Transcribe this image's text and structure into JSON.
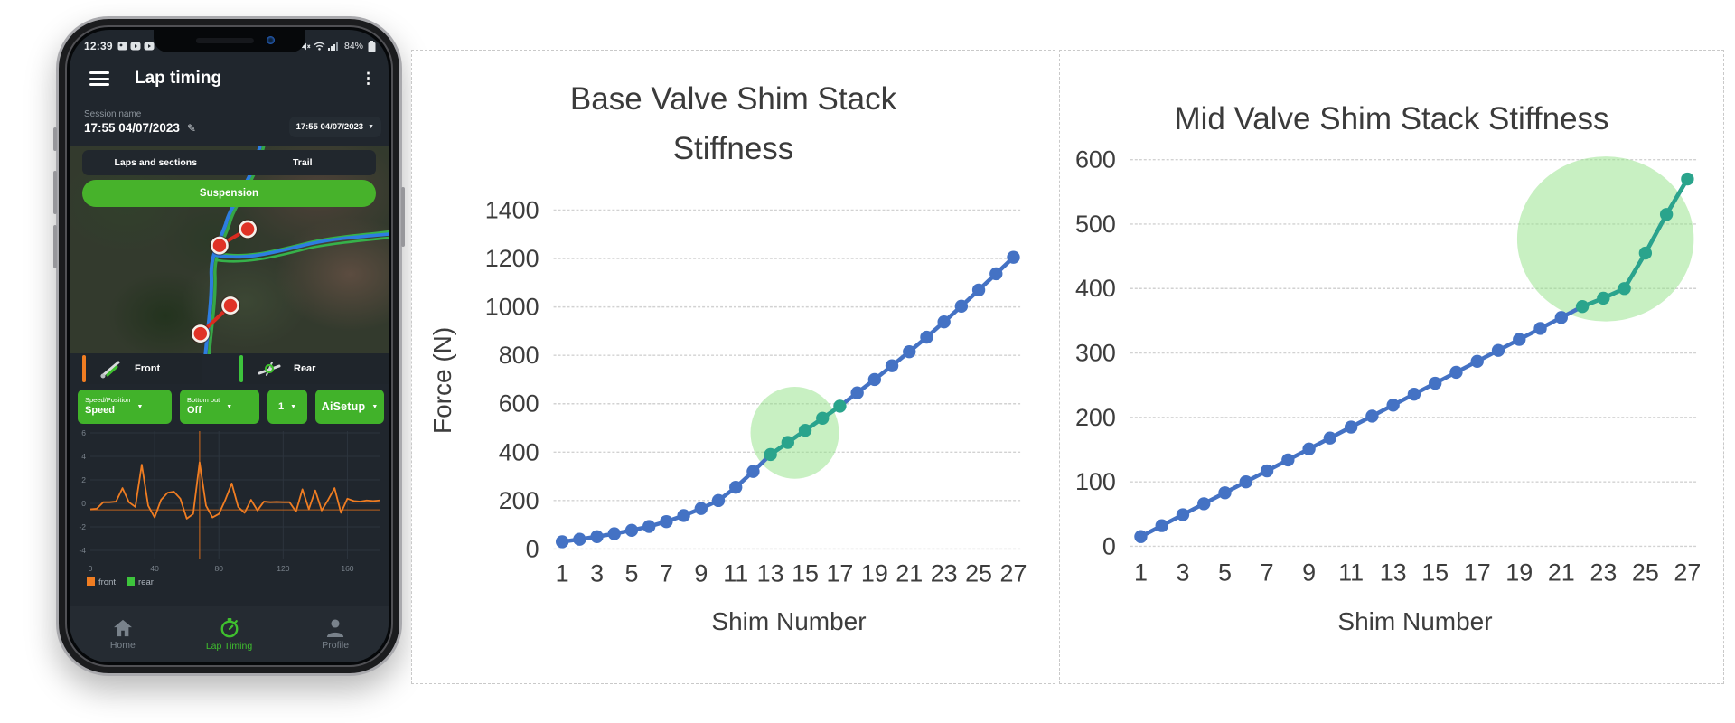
{
  "glyphs": {
    "caret_down": "▼",
    "pencil": "✎",
    "kebab": "⋮",
    "dot": "•"
  },
  "phone": {
    "status_bar": {
      "time": "12:39",
      "battery_percent": "84%",
      "left_icons": [
        "gallery-icon",
        "play-icon",
        "play-icon",
        "dot"
      ],
      "right_icons": [
        "alarm-icon",
        "mute-icon",
        "wifi-icon",
        "signal-icon",
        "battery-icon"
      ]
    },
    "app_bar": {
      "title": "Lap timing"
    },
    "session": {
      "label": "Session name",
      "name": "17:55 04/07/2023",
      "selected_session": "17:55 04/07/2023"
    },
    "top_tabs": [
      {
        "label": "Laps and sections"
      },
      {
        "label": "Trail"
      }
    ],
    "suspension_button_label": "Suspension",
    "sensor_tabs": [
      {
        "label": "Front",
        "accent": "#f07d22",
        "icon": "front-fork-icon"
      },
      {
        "label": "Rear",
        "accent": "#3dc43c",
        "icon": "rear-shock-icon"
      }
    ],
    "dropdowns": [
      {
        "label": "Speed/Position",
        "value": "Speed"
      },
      {
        "label": "Bottom out",
        "value": "Off"
      },
      {
        "label": "",
        "value": "1"
      },
      {
        "label": "",
        "value": "AiSetup"
      }
    ],
    "mini_chart": {
      "y_tick_labels": [
        "6",
        "4",
        "2",
        "0",
        "-2",
        "-4"
      ],
      "x_tick_labels": [
        "0",
        "40",
        "80",
        "120",
        "160"
      ],
      "x_max": 180,
      "x_step": 4,
      "cursor_x": 68,
      "baseline_value": -0.55,
      "front_trace": [
        -0.5,
        -0.45,
        0.1,
        0.1,
        0.15,
        1.3,
        0.1,
        -0.3,
        3.3,
        -0.2,
        -1.2,
        0.3,
        0.9,
        1.0,
        0.4,
        -1.3,
        -0.9,
        3.5,
        -0.2,
        -1.2,
        -0.9,
        0.3,
        1.7,
        -0.3,
        -0.8,
        0.3,
        -0.6,
        0.15,
        0.1,
        0.12,
        0.1,
        0.1,
        -0.7,
        1.2,
        -0.5,
        1.1,
        -0.6,
        0.3,
        1.3,
        -0.8,
        0.4,
        0.2,
        0.15,
        0.25,
        0.2,
        0.25
      ],
      "legend": [
        {
          "label": "front",
          "color": "#f07d22"
        },
        {
          "label": "rear",
          "color": "#3dc43c"
        }
      ]
    },
    "bottom_nav": [
      {
        "label": "Home",
        "icon": "home-icon",
        "active": false
      },
      {
        "label": "Lap Timing",
        "icon": "stopwatch-icon",
        "active": true
      },
      {
        "label": "Profile",
        "icon": "profile-icon",
        "active": false
      }
    ],
    "colors": {
      "green": "#45b22b",
      "orange": "#f07d22",
      "screen_bg": "#20262d",
      "dark_pill": "#262d34"
    }
  },
  "chart_data": [
    {
      "type": "line",
      "title": "Base Valve Shim Stack Stiffness",
      "title_lines": [
        "Base Valve Shim Stack",
        "Stiffness"
      ],
      "xlabel": "Shim Number",
      "ylabel": "Force (N)",
      "x": [
        1,
        2,
        3,
        4,
        5,
        6,
        7,
        8,
        9,
        10,
        11,
        12,
        13,
        14,
        15,
        16,
        17,
        18,
        19,
        20,
        21,
        22,
        23,
        24,
        25,
        26,
        27
      ],
      "values": [
        30,
        40,
        51,
        63,
        77,
        93,
        113,
        138,
        167,
        200,
        255,
        320,
        390,
        440,
        490,
        540,
        590,
        645,
        700,
        757,
        815,
        875,
        938,
        1003,
        1070,
        1137,
        1205
      ],
      "ylim": [
        0,
        1400
      ],
      "ytick_step": 200,
      "y_tick_labels": [
        "0",
        "200",
        "400",
        "600",
        "800",
        "1000",
        "1200",
        "1400"
      ],
      "x_tick_labels": [
        "1",
        "3",
        "5",
        "7",
        "9",
        "11",
        "13",
        "15",
        "17",
        "19",
        "21",
        "23",
        "25",
        "27"
      ],
      "point_color": "#4472c4",
      "highlight_color": "#2aa48c",
      "highlight_fill": "rgba(146,226,134,0.5)",
      "highlight_points": {
        "from_shim": 13,
        "to_shim": 17
      },
      "highlight_circle": {
        "shim": 14.4,
        "value": 480,
        "rx_shims": 2.55,
        "ry_values": 190
      },
      "grid": true,
      "legend_position": "none"
    },
    {
      "type": "line",
      "title": "Mid Valve Shim Stack Stiffness",
      "title_lines": [
        "Mid Valve Shim Stack Stiffness"
      ],
      "xlabel": "Shim Number",
      "ylabel": "",
      "x": [
        1,
        2,
        3,
        4,
        5,
        6,
        7,
        8,
        9,
        10,
        11,
        12,
        13,
        14,
        15,
        16,
        17,
        18,
        19,
        20,
        21,
        22,
        23,
        24,
        25,
        26,
        27
      ],
      "values": [
        15,
        32,
        49,
        66,
        83,
        100,
        117,
        134,
        151,
        168,
        185,
        202,
        219,
        236,
        253,
        270,
        287,
        304,
        321,
        338,
        355,
        372,
        385,
        400,
        455,
        515,
        570
      ],
      "ylim": [
        0,
        600
      ],
      "ytick_step": 100,
      "y_tick_labels": [
        "0",
        "100",
        "200",
        "300",
        "400",
        "500",
        "600"
      ],
      "x_tick_labels": [
        "1",
        "3",
        "5",
        "7",
        "9",
        "11",
        "13",
        "15",
        "17",
        "19",
        "21",
        "23",
        "25",
        "27"
      ],
      "point_color": "#4472c4",
      "highlight_color": "#2aa48c",
      "highlight_fill": "rgba(146,226,134,0.5)",
      "highlight_points": {
        "from_shim": 22,
        "to_shim": 27
      },
      "highlight_circle": {
        "shim": 23.1,
        "value": 477,
        "rx_shims": 4.2,
        "ry_values": 128
      },
      "grid": true,
      "legend_position": "none"
    }
  ]
}
